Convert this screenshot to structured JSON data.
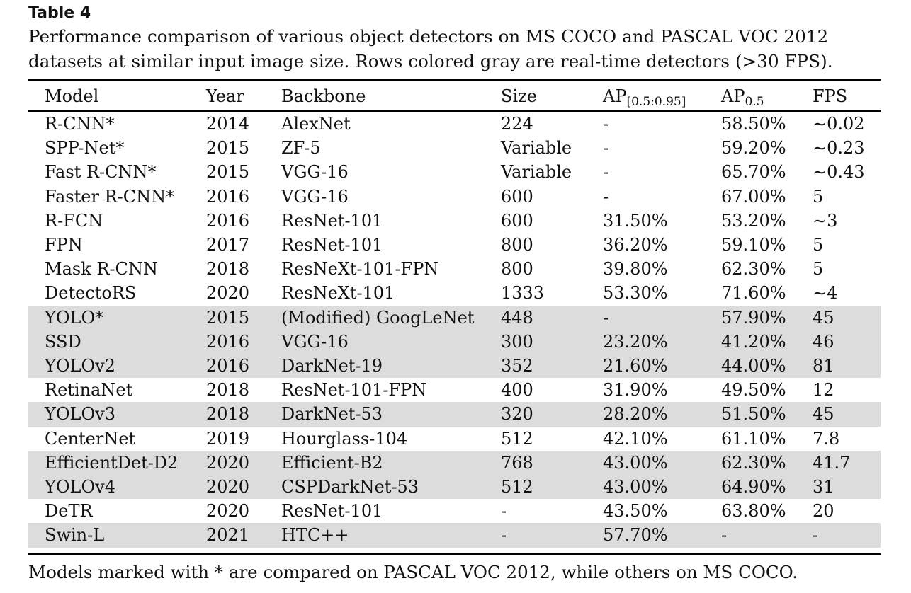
{
  "table_label": "Table 4",
  "caption": "Performance comparison of various object detectors on MS COCO and PASCAL VOC 2012 datasets at similar input image size. Rows colored gray are real-time detectors (>30 FPS).",
  "headers": {
    "model": "Model",
    "year": "Year",
    "backbone": "Backbone",
    "size": "Size",
    "ap_main": "AP",
    "ap_sub": "[0.5:0.95]",
    "ap50_main": "AP",
    "ap50_sub": "0.5",
    "fps": "FPS"
  },
  "rows": [
    {
      "model": "R-CNN*",
      "year": "2014",
      "backbone": "AlexNet",
      "size": "224",
      "ap": "-",
      "ap50": "58.50%",
      "fps": "∼0.02",
      "realtime": false
    },
    {
      "model": "SPP-Net*",
      "year": "2015",
      "backbone": "ZF-5",
      "size": "Variable",
      "ap": "-",
      "ap50": "59.20%",
      "fps": "∼0.23",
      "realtime": false
    },
    {
      "model": "Fast R-CNN*",
      "year": "2015",
      "backbone": "VGG-16",
      "size": "Variable",
      "ap": "-",
      "ap50": "65.70%",
      "fps": "∼0.43",
      "realtime": false
    },
    {
      "model": "Faster R-CNN*",
      "year": "2016",
      "backbone": "VGG-16",
      "size": "600",
      "ap": "-",
      "ap50": "67.00%",
      "fps": "5",
      "realtime": false
    },
    {
      "model": "R-FCN",
      "year": "2016",
      "backbone": "ResNet-101",
      "size": "600",
      "ap": "31.50%",
      "ap50": "53.20%",
      "fps": "∼3",
      "realtime": false
    },
    {
      "model": "FPN",
      "year": "2017",
      "backbone": "ResNet-101",
      "size": "800",
      "ap": "36.20%",
      "ap50": "59.10%",
      "fps": "5",
      "realtime": false
    },
    {
      "model": "Mask R-CNN",
      "year": "2018",
      "backbone": "ResNeXt-101-FPN",
      "size": "800",
      "ap": "39.80%",
      "ap50": "62.30%",
      "fps": "5",
      "realtime": false
    },
    {
      "model": "DetectoRS",
      "year": "2020",
      "backbone": "ResNeXt-101",
      "size": "1333",
      "ap": "53.30%",
      "ap50": "71.60%",
      "fps": "∼4",
      "realtime": false
    },
    {
      "model": "YOLO*",
      "year": "2015",
      "backbone": "(Modified) GoogLeNet",
      "size": "448",
      "ap": "-",
      "ap50": "57.90%",
      "fps": "45",
      "realtime": true
    },
    {
      "model": "SSD",
      "year": "2016",
      "backbone": "VGG-16",
      "size": "300",
      "ap": "23.20%",
      "ap50": "41.20%",
      "fps": "46",
      "realtime": true
    },
    {
      "model": "YOLOv2",
      "year": "2016",
      "backbone": "DarkNet-19",
      "size": "352",
      "ap": "21.60%",
      "ap50": "44.00%",
      "fps": "81",
      "realtime": true
    },
    {
      "model": "RetinaNet",
      "year": "2018",
      "backbone": "ResNet-101-FPN",
      "size": "400",
      "ap": "31.90%",
      "ap50": "49.50%",
      "fps": "12",
      "realtime": false
    },
    {
      "model": "YOLOv3",
      "year": "2018",
      "backbone": "DarkNet-53",
      "size": "320",
      "ap": "28.20%",
      "ap50": "51.50%",
      "fps": "45",
      "realtime": true
    },
    {
      "model": "CenterNet",
      "year": "2019",
      "backbone": "Hourglass-104",
      "size": "512",
      "ap": "42.10%",
      "ap50": "61.10%",
      "fps": "7.8",
      "realtime": false
    },
    {
      "model": "EfficientDet-D2",
      "year": "2020",
      "backbone": "Efficient-B2",
      "size": "768",
      "ap": "43.00%",
      "ap50": "62.30%",
      "fps": "41.7",
      "realtime": true
    },
    {
      "model": "YOLOv4",
      "year": "2020",
      "backbone": "CSPDarkNet-53",
      "size": "512",
      "ap": "43.00%",
      "ap50": "64.90%",
      "fps": "31",
      "realtime": true
    },
    {
      "model": "DeTR",
      "year": "2020",
      "backbone": "ResNet-101",
      "size": "-",
      "ap": "43.50%",
      "ap50": "63.80%",
      "fps": "20",
      "realtime": false
    },
    {
      "model": "Swin-L",
      "year": "2021",
      "backbone": "HTC++",
      "size": "-",
      "ap": "57.70%",
      "ap50": "-",
      "fps": "-",
      "realtime": true
    }
  ],
  "footnote": "Models marked with * are compared on PASCAL VOC 2012, while others on MS COCO.",
  "colors": {
    "realtime_row": "#dcdcdc",
    "text": "#111111",
    "rule": "#000000"
  }
}
